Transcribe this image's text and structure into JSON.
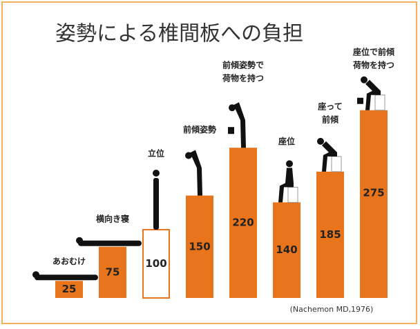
{
  "chart_data": {
    "type": "bar",
    "title": "姿勢による椎間板への負担",
    "categories": [
      [
        "あおむけ"
      ],
      [
        "横向き寝"
      ],
      [
        "立位"
      ],
      [
        "前傾姿勢"
      ],
      [
        "前傾姿勢で",
        "荷物を持つ"
      ],
      [
        "座位"
      ],
      [
        "座って",
        "前傾"
      ],
      [
        "座位で前傾",
        "荷物を持つ"
      ]
    ],
    "values": [
      25,
      75,
      100,
      150,
      220,
      140,
      185,
      275
    ],
    "color": "#e8741c",
    "outlined": [
      false,
      false,
      true,
      false,
      false,
      false,
      false,
      false
    ],
    "source": "(Nachemon MD,1976)"
  }
}
